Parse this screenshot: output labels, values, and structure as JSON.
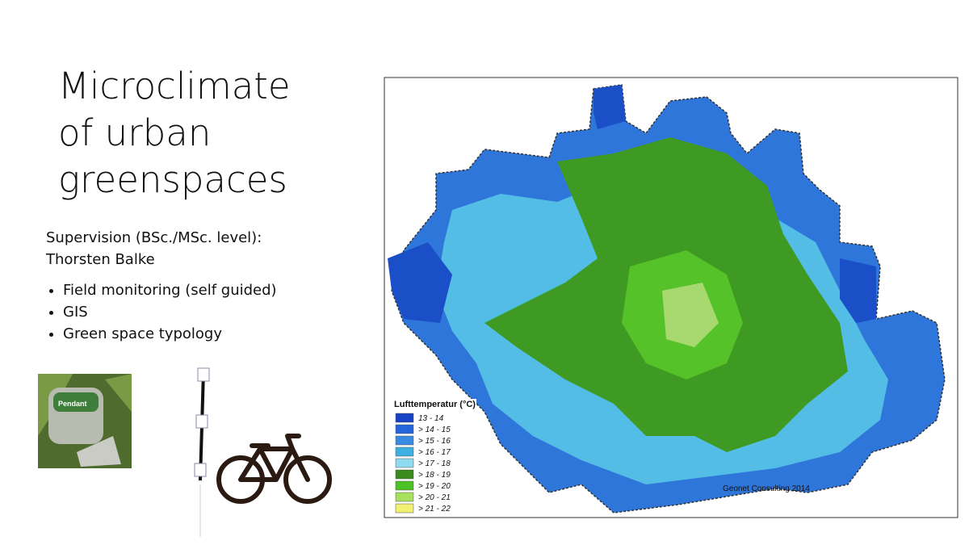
{
  "slide": {
    "title_lines": [
      "Microclimate",
      "of urban",
      "greenspaces"
    ],
    "supervision": [
      "Supervision (BSc./MSc. level):",
      "Thorsten Balke"
    ],
    "bullets": [
      "Field monitoring (self guided)",
      "GIS",
      "Green space typology"
    ],
    "map": {
      "legend_title": "Lufttemperatur (°C)",
      "legend": [
        {
          "label": "13 - 14",
          "color": "#1743c4"
        },
        {
          "label": "> 14 - 15",
          "color": "#2565dc"
        },
        {
          "label": "> 15 - 16",
          "color": "#3b8ae2"
        },
        {
          "label": "> 16 - 17",
          "color": "#3fb0e2"
        },
        {
          "label": "> 17 - 18",
          "color": "#8fdaf0"
        },
        {
          "label": "> 18 - 19",
          "color": "#3a8a1c"
        },
        {
          "label": "> 19 - 20",
          "color": "#4cc224"
        },
        {
          "label": "> 20 - 21",
          "color": "#a8e060"
        },
        {
          "label": "> 21 - 22",
          "color": "#f2f070"
        }
      ],
      "credit": "Geonet Consulting 2014"
    }
  }
}
